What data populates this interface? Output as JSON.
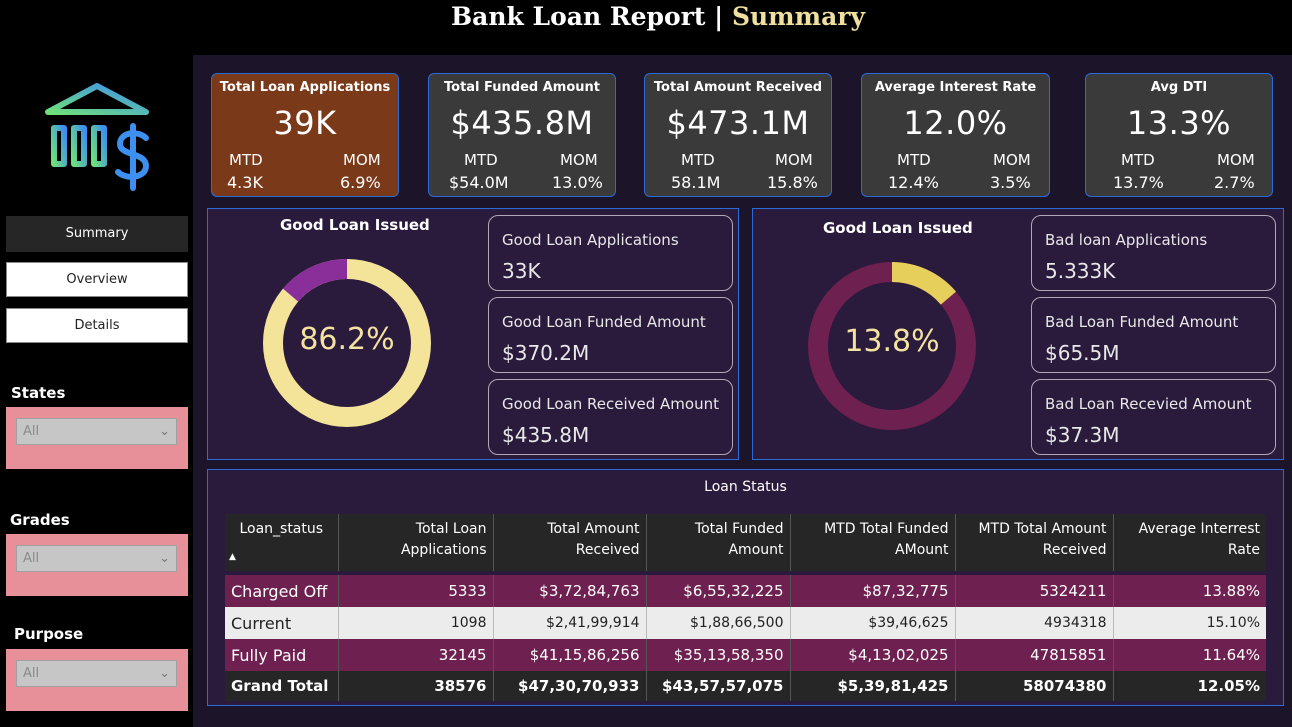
{
  "header": {
    "title_main": "Bank Loan Report | ",
    "title_accent": "Summary"
  },
  "colors": {
    "accent": "#f0e0a0",
    "kpi_first": "#7a3a1a",
    "kpi_bg": "#3a3a3a",
    "good_ring": "#f3e49a",
    "good_slice": "#8a2f9a",
    "bad_ring": "#6e2050",
    "bad_slice": "#e6cf5a",
    "border": "#2b6bd8"
  },
  "logo_icon": "bank-dollar-icon",
  "nav": {
    "summary": "Summary",
    "overview": "Overview",
    "details": "Details"
  },
  "filters": [
    {
      "label": "States",
      "value": "All"
    },
    {
      "label": "Grades",
      "value": "All"
    },
    {
      "label": "Purpose",
      "value": "All"
    }
  ],
  "kpis": [
    {
      "title": "Total Loan Applications",
      "value": "39K",
      "mtd_label": "MTD",
      "mtd": "4.3K",
      "mom_label": "MOM",
      "mom": "6.9%"
    },
    {
      "title": "Total Funded Amount",
      "value": "$435.8M",
      "mtd_label": "MTD",
      "mtd": "$54.0M",
      "mom_label": "MOM",
      "mom": "13.0%"
    },
    {
      "title": "Total Amount Received",
      "value": "$473.1M",
      "mtd_label": "MTD",
      "mtd": "58.1M",
      "mom_label": "MOM",
      "mom": "15.8%"
    },
    {
      "title": "Average Interest Rate",
      "value": "12.0%",
      "mtd_label": "MTD",
      "mtd": "12.4%",
      "mom_label": "MOM",
      "mom": "3.5%"
    },
    {
      "title": "Avg DTI",
      "value": "13.3%",
      "mtd_label": "MTD",
      "mtd": "13.7%",
      "mom_label": "MOM",
      "mom": "2.7%"
    }
  ],
  "good": {
    "title": "Good Loan Issued",
    "pct_label": "86.2%",
    "pct": 86.2,
    "cards": [
      {
        "title": "Good Loan Applications",
        "value": "33K"
      },
      {
        "title": "Good Loan Funded Amount",
        "value": "$370.2M"
      },
      {
        "title": "Good Loan Received Amount",
        "value": "$435.8M"
      }
    ]
  },
  "bad": {
    "title": "Good Loan Issued",
    "pct_label": "13.8%",
    "pct": 13.8,
    "cards": [
      {
        "title": "Bad loan Applications",
        "value": "5.333K"
      },
      {
        "title": "Bad Loan Funded Amount",
        "value": "$65.5M"
      },
      {
        "title": "Bad Loan Recevied Amount",
        "value": "$37.3M"
      }
    ]
  },
  "loan_status": {
    "title": "Loan Status",
    "columns": [
      [
        "Loan_status",
        ""
      ],
      [
        "Total Loan",
        "Applications"
      ],
      [
        "Total Amount",
        "Received"
      ],
      [
        "Total Funded",
        "Amount"
      ],
      [
        "MTD Total Funded",
        "AMount"
      ],
      [
        "MTD Total Amount",
        "Received"
      ],
      [
        "Average Interrest",
        "Rate"
      ]
    ],
    "rows": [
      [
        "Charged Off",
        "5333",
        "$3,72,84,763",
        "$6,55,32,225",
        "$87,32,775",
        "5324211",
        "13.88%"
      ],
      [
        "Current",
        "1098",
        "$2,41,99,914",
        "$1,88,66,500",
        "$39,46,625",
        "4934318",
        "15.10%"
      ],
      [
        "Fully Paid",
        "32145",
        "$41,15,86,256",
        "$35,13,58,350",
        "$4,13,02,025",
        "47815851",
        "11.64%"
      ]
    ],
    "total": [
      "Grand Total",
      "38576",
      "$47,30,70,933",
      "$43,57,57,075",
      "$5,39,81,425",
      "58074380",
      "12.05%"
    ]
  }
}
